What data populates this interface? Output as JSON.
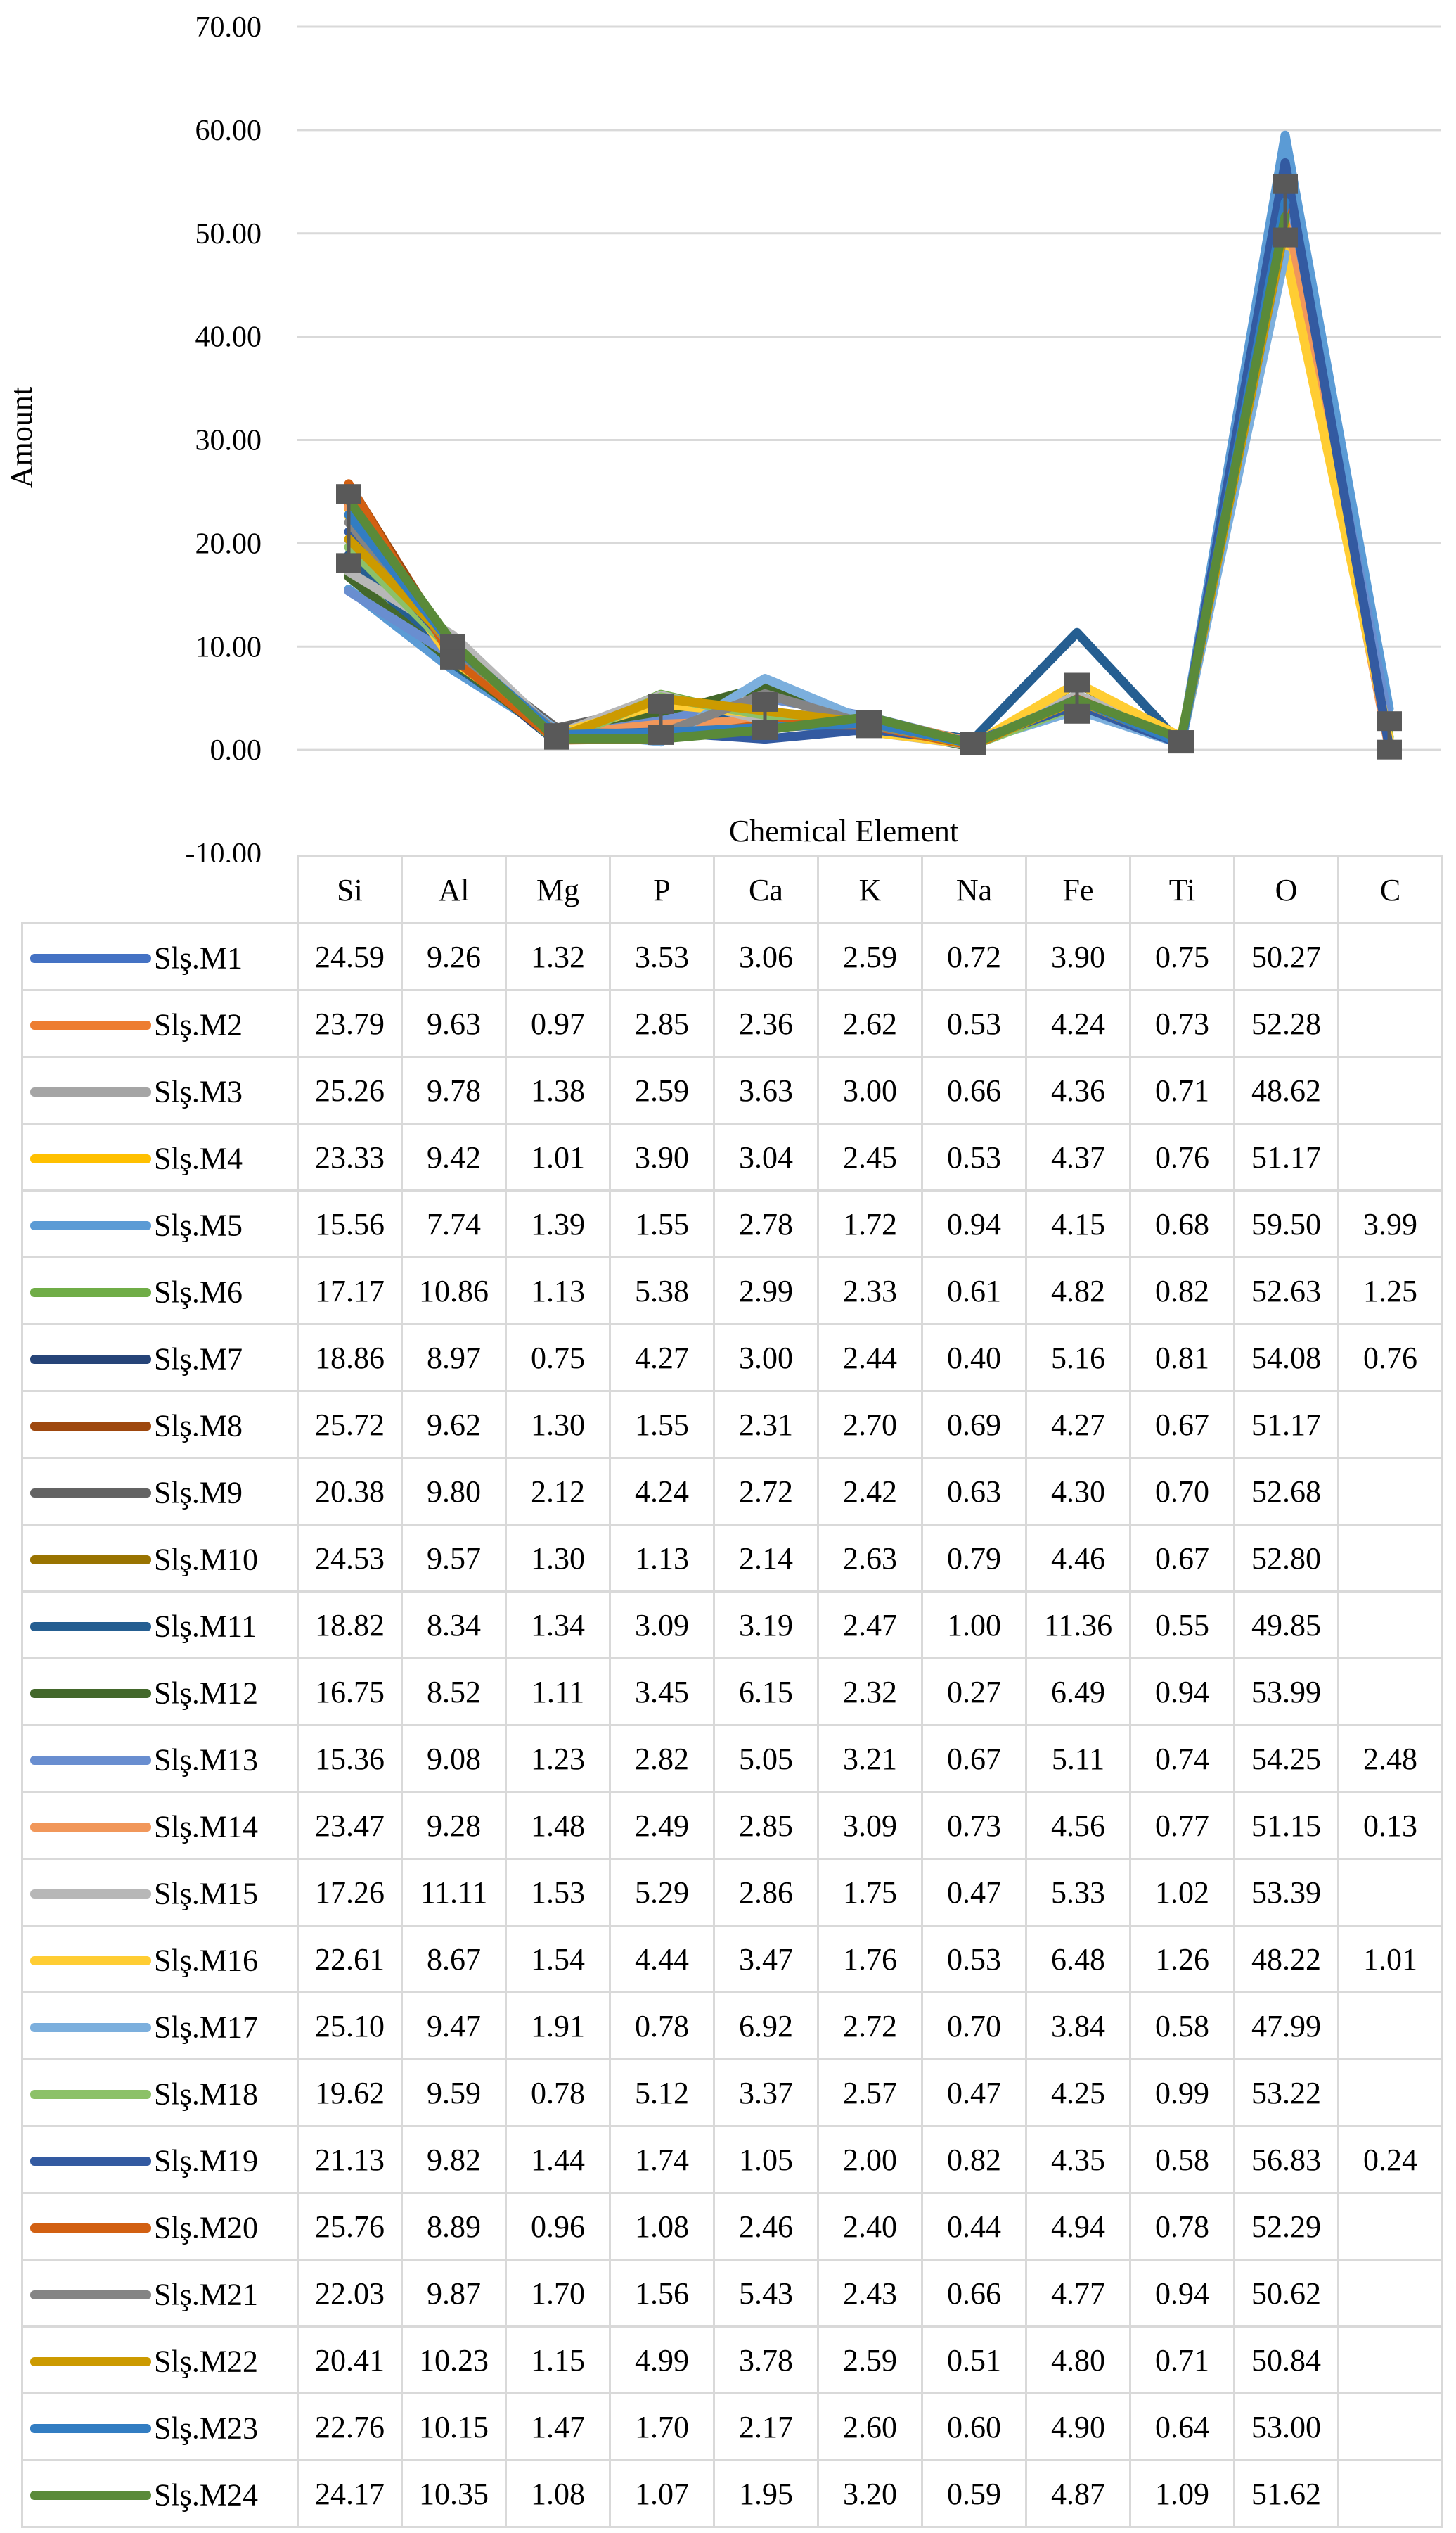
{
  "chart_data": {
    "type": "line",
    "xlabel": "Chemical Element",
    "ylabel": "Amount",
    "ylim": [
      -10,
      70
    ],
    "yticks": [
      "70.00",
      "60.00",
      "50.00",
      "40.00",
      "30.00",
      "20.00",
      "10.00",
      "0.00",
      "-10.00"
    ],
    "grid": "horizontal",
    "error_bars": true,
    "categories": [
      "Si",
      "Al",
      "Mg",
      "P",
      "Ca",
      "K",
      "Na",
      "Fe",
      "Ti",
      "O",
      "C"
    ],
    "series": [
      {
        "name": "Slş.M1",
        "color": "#4472c4",
        "values": [
          24.59,
          9.26,
          1.32,
          3.53,
          3.06,
          2.59,
          0.72,
          3.9,
          0.75,
          50.27,
          null
        ]
      },
      {
        "name": "Slş.M2",
        "color": "#ed7d31",
        "values": [
          23.79,
          9.63,
          0.97,
          2.85,
          2.36,
          2.62,
          0.53,
          4.24,
          0.73,
          52.28,
          null
        ]
      },
      {
        "name": "Slş.M3",
        "color": "#a5a5a5",
        "values": [
          25.26,
          9.78,
          1.38,
          2.59,
          3.63,
          3.0,
          0.66,
          4.36,
          0.71,
          48.62,
          null
        ]
      },
      {
        "name": "Slş.M4",
        "color": "#ffc000",
        "values": [
          23.33,
          9.42,
          1.01,
          3.9,
          3.04,
          2.45,
          0.53,
          4.37,
          0.76,
          51.17,
          null
        ]
      },
      {
        "name": "Slş.M5",
        "color": "#5b9bd5",
        "values": [
          15.56,
          7.74,
          1.39,
          1.55,
          2.78,
          1.72,
          0.94,
          4.15,
          0.68,
          59.5,
          3.99
        ]
      },
      {
        "name": "Slş.M6",
        "color": "#70ad47",
        "values": [
          17.17,
          10.86,
          1.13,
          5.38,
          2.99,
          2.33,
          0.61,
          4.82,
          0.82,
          52.63,
          1.25
        ]
      },
      {
        "name": "Slş.M7",
        "color": "#264478",
        "values": [
          18.86,
          8.97,
          0.75,
          4.27,
          3.0,
          2.44,
          0.4,
          5.16,
          0.81,
          54.08,
          0.76
        ]
      },
      {
        "name": "Slş.M8",
        "color": "#9e480e",
        "values": [
          25.72,
          9.62,
          1.3,
          1.55,
          2.31,
          2.7,
          0.69,
          4.27,
          0.67,
          51.17,
          null
        ]
      },
      {
        "name": "Slş.M9",
        "color": "#636363",
        "values": [
          20.38,
          9.8,
          2.12,
          4.24,
          2.72,
          2.42,
          0.63,
          4.3,
          0.7,
          52.68,
          null
        ]
      },
      {
        "name": "Slş.M10",
        "color": "#997300",
        "values": [
          24.53,
          9.57,
          1.3,
          1.13,
          2.14,
          2.63,
          0.79,
          4.46,
          0.67,
          52.8,
          null
        ]
      },
      {
        "name": "Slş.M11",
        "color": "#255e91",
        "values": [
          18.82,
          8.34,
          1.34,
          3.09,
          3.19,
          2.47,
          1.0,
          11.36,
          0.55,
          49.85,
          null
        ]
      },
      {
        "name": "Slş.M12",
        "color": "#43682b",
        "values": [
          16.75,
          8.52,
          1.11,
          3.45,
          6.15,
          2.32,
          0.27,
          6.49,
          0.94,
          53.99,
          null
        ]
      },
      {
        "name": "Slş.M13",
        "color": "#698ed0",
        "values": [
          15.36,
          9.08,
          1.23,
          2.82,
          5.05,
          3.21,
          0.67,
          5.11,
          0.74,
          54.25,
          2.48
        ]
      },
      {
        "name": "Slş.M14",
        "color": "#f1975a",
        "values": [
          23.47,
          9.28,
          1.48,
          2.49,
          2.85,
          3.09,
          0.73,
          4.56,
          0.77,
          51.15,
          0.13
        ]
      },
      {
        "name": "Slş.M15",
        "color": "#b7b7b7",
        "values": [
          17.26,
          11.11,
          1.53,
          5.29,
          2.86,
          1.75,
          0.47,
          5.33,
          1.02,
          53.39,
          null
        ]
      },
      {
        "name": "Slş.M16",
        "color": "#ffcd33",
        "values": [
          22.61,
          8.67,
          1.54,
          4.44,
          3.47,
          1.76,
          0.53,
          6.48,
          1.26,
          48.22,
          1.01
        ]
      },
      {
        "name": "Slş.M17",
        "color": "#7cafdd",
        "values": [
          25.1,
          9.47,
          1.91,
          0.78,
          6.92,
          2.72,
          0.7,
          3.84,
          0.58,
          47.99,
          null
        ]
      },
      {
        "name": "Slş.M18",
        "color": "#8cc168",
        "values": [
          19.62,
          9.59,
          0.78,
          5.12,
          3.37,
          2.57,
          0.47,
          4.25,
          0.99,
          53.22,
          null
        ]
      },
      {
        "name": "Slş.M19",
        "color": "#335aa1",
        "values": [
          21.13,
          9.82,
          1.44,
          1.74,
          1.05,
          2.0,
          0.82,
          4.35,
          0.58,
          56.83,
          0.24
        ]
      },
      {
        "name": "Slş.M20",
        "color": "#d26012",
        "values": [
          25.76,
          8.89,
          0.96,
          1.08,
          2.46,
          2.4,
          0.44,
          4.94,
          0.78,
          52.29,
          null
        ]
      },
      {
        "name": "Slş.M21",
        "color": "#848484",
        "values": [
          22.03,
          9.87,
          1.7,
          1.56,
          5.43,
          2.43,
          0.66,
          4.77,
          0.94,
          50.62,
          null
        ]
      },
      {
        "name": "Slş.M22",
        "color": "#cc9a00",
        "values": [
          20.41,
          10.23,
          1.15,
          4.99,
          3.78,
          2.59,
          0.51,
          4.8,
          0.71,
          50.84,
          null
        ]
      },
      {
        "name": "Slş.M23",
        "color": "#327dc2",
        "values": [
          22.76,
          10.15,
          1.47,
          1.7,
          2.17,
          2.6,
          0.6,
          4.9,
          0.64,
          53.0,
          null
        ]
      },
      {
        "name": "Slş.M24",
        "color": "#5a8a39",
        "values": [
          24.17,
          10.35,
          1.08,
          1.07,
          1.95,
          3.2,
          0.59,
          4.87,
          1.09,
          51.62,
          null
        ]
      }
    ],
    "table_values": [
      [
        "24.59",
        "9.26",
        "1.32",
        "3.53",
        "3.06",
        "2.59",
        "0.72",
        "3.90",
        "0.75",
        "50.27",
        ""
      ],
      [
        "23.79",
        "9.63",
        "0.97",
        "2.85",
        "2.36",
        "2.62",
        "0.53",
        "4.24",
        "0.73",
        "52.28",
        ""
      ],
      [
        "25.26",
        "9.78",
        "1.38",
        "2.59",
        "3.63",
        "3.00",
        "0.66",
        "4.36",
        "0.71",
        "48.62",
        ""
      ],
      [
        "23.33",
        "9.42",
        "1.01",
        "3.90",
        "3.04",
        "2.45",
        "0.53",
        "4.37",
        "0.76",
        "51.17",
        ""
      ],
      [
        "15.56",
        "7.74",
        "1.39",
        "1.55",
        "2.78",
        "1.72",
        "0.94",
        "4.15",
        "0.68",
        "59.50",
        "3.99"
      ],
      [
        "17.17",
        "10.86",
        "1.13",
        "5.38",
        "2.99",
        "2.33",
        "0.61",
        "4.82",
        "0.82",
        "52.63",
        "1.25"
      ],
      [
        "18.86",
        "8.97",
        "0.75",
        "4.27",
        "3.00",
        "2.44",
        "0.40",
        "5.16",
        "0.81",
        "54.08",
        "0.76"
      ],
      [
        "25.72",
        "9.62",
        "1.30",
        "1.55",
        "2.31",
        "2.70",
        "0.69",
        "4.27",
        "0.67",
        "51.17",
        ""
      ],
      [
        "20.38",
        "9.80",
        "2.12",
        "4.24",
        "2.72",
        "2.42",
        "0.63",
        "4.30",
        "0.70",
        "52.68",
        ""
      ],
      [
        "24.53",
        "9.57",
        "1.30",
        "1.13",
        "2.14",
        "2.63",
        "0.79",
        "4.46",
        "0.67",
        "52.80",
        ""
      ],
      [
        "18.82",
        "8.34",
        "1.34",
        "3.09",
        "3.19",
        "2.47",
        "1.00",
        "11.36",
        "0.55",
        "49.85",
        ""
      ],
      [
        "16.75",
        "8.52",
        "1.11",
        "3.45",
        "6.15",
        "2.32",
        "0.27",
        "6.49",
        "0.94",
        "53.99",
        ""
      ],
      [
        "15.36",
        "9.08",
        "1.23",
        "2.82",
        "5.05",
        "3.21",
        "0.67",
        "5.11",
        "0.74",
        "54.25",
        "2.48"
      ],
      [
        "23.47",
        "9.28",
        "1.48",
        "2.49",
        "2.85",
        "3.09",
        "0.73",
        "4.56",
        "0.77",
        "51.15",
        "0.13"
      ],
      [
        "17.26",
        "11.11",
        "1.53",
        "5.29",
        "2.86",
        "1.75",
        "0.47",
        "5.33",
        "1.02",
        "53.39",
        ""
      ],
      [
        "22.61",
        "8.67",
        "1.54",
        "4.44",
        "3.47",
        "1.76",
        "0.53",
        "6.48",
        "1.26",
        "48.22",
        "1.01"
      ],
      [
        "25.10",
        "9.47",
        "1.91",
        "0.78",
        "6.92",
        "2.72",
        "0.70",
        "3.84",
        "0.58",
        "47.99",
        ""
      ],
      [
        "19.62",
        "9.59",
        "0.78",
        "5.12",
        "3.37",
        "2.57",
        "0.47",
        "4.25",
        "0.99",
        "53.22",
        ""
      ],
      [
        "21.13",
        "9.82",
        "1.44",
        "1.74",
        "1.05",
        "2.00",
        "0.82",
        "4.35",
        "0.58",
        "56.83",
        "0.24"
      ],
      [
        "25.76",
        "8.89",
        "0.96",
        "1.08",
        "2.46",
        "2.40",
        "0.44",
        "4.94",
        "0.78",
        "52.29",
        ""
      ],
      [
        "22.03",
        "9.87",
        "1.70",
        "1.56",
        "5.43",
        "2.43",
        "0.66",
        "4.77",
        "0.94",
        "50.62",
        ""
      ],
      [
        "20.41",
        "10.23",
        "1.15",
        "4.99",
        "3.78",
        "2.59",
        "0.51",
        "4.80",
        "0.71",
        "50.84",
        ""
      ],
      [
        "22.76",
        "10.15",
        "1.47",
        "1.70",
        "2.17",
        "2.60",
        "0.60",
        "4.90",
        "0.64",
        "53.00",
        ""
      ],
      [
        "24.17",
        "10.35",
        "1.08",
        "1.07",
        "1.95",
        "3.20",
        "0.59",
        "4.87",
        "1.09",
        "51.62",
        ""
      ]
    ]
  }
}
